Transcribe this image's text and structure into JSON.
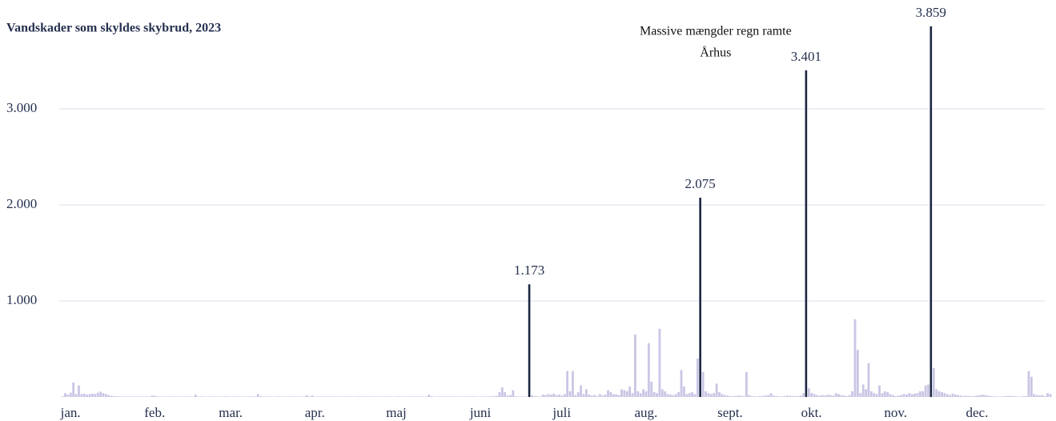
{
  "chart_data": {
    "type": "bar",
    "title": "Vandskader som skyldes skybrud, 2023",
    "months": [
      "jan.",
      "feb.",
      "mar.",
      "apr.",
      "maj",
      "juni",
      "juli",
      "aug.",
      "sept.",
      "okt.",
      "nov.",
      "dec."
    ],
    "values": [
      8,
      40,
      25,
      45,
      150,
      30,
      120,
      30,
      35,
      25,
      30,
      35,
      30,
      45,
      55,
      40,
      30,
      20,
      12,
      10,
      8,
      6,
      5,
      6,
      5,
      6,
      5,
      4,
      5,
      6,
      5,
      6,
      5,
      15,
      12,
      6,
      5,
      5,
      4,
      5,
      6,
      5,
      5,
      4,
      5,
      6,
      5,
      5,
      4,
      25,
      5,
      6,
      5,
      4,
      5,
      6,
      5,
      5,
      4,
      5,
      6,
      5,
      4,
      5,
      6,
      5,
      5,
      4,
      5,
      6,
      5,
      6,
      30,
      8,
      5,
      6,
      5,
      5,
      4,
      5,
      6,
      5,
      4,
      5,
      6,
      5,
      5,
      4,
      5,
      6,
      20,
      6,
      15,
      4,
      5,
      6,
      5,
      5,
      4,
      5,
      6,
      5,
      4,
      5,
      6,
      5,
      5,
      4,
      5,
      6,
      5,
      6,
      5,
      4,
      5,
      6,
      5,
      5,
      4,
      5,
      6,
      5,
      4,
      5,
      6,
      5,
      5,
      4,
      5,
      6,
      5,
      6,
      5,
      4,
      5,
      25,
      8,
      5,
      4,
      5,
      6,
      5,
      4,
      5,
      6,
      5,
      5,
      4,
      5,
      6,
      5,
      6,
      5,
      4,
      5,
      6,
      5,
      5,
      8,
      10,
      12,
      50,
      100,
      50,
      15,
      20,
      70,
      8,
      6,
      5,
      5,
      6,
      1173,
      20,
      10,
      8,
      6,
      25,
      20,
      30,
      25,
      35,
      20,
      25,
      15,
      30,
      270,
      60,
      270,
      20,
      50,
      120,
      30,
      80,
      25,
      15,
      20,
      10,
      30,
      15,
      25,
      70,
      50,
      30,
      25,
      20,
      80,
      70,
      60,
      110,
      40,
      650,
      60,
      40,
      80,
      60,
      560,
      160,
      50,
      40,
      710,
      80,
      60,
      30,
      25,
      20,
      30,
      50,
      280,
      110,
      30,
      40,
      50,
      30,
      400,
      2075,
      260,
      60,
      40,
      30,
      40,
      140,
      50,
      30,
      20,
      15,
      10,
      8,
      10,
      15,
      12,
      10,
      260,
      20,
      10,
      8,
      6,
      10,
      12,
      15,
      20,
      40,
      15,
      10,
      8,
      6,
      10,
      15,
      12,
      10,
      8,
      10,
      15,
      40,
      3401,
      90,
      40,
      30,
      20,
      15,
      20,
      15,
      25,
      20,
      15,
      40,
      30,
      20,
      15,
      10,
      20,
      60,
      810,
      490,
      40,
      130,
      80,
      350,
      60,
      40,
      30,
      120,
      40,
      60,
      50,
      30,
      20,
      10,
      15,
      20,
      30,
      25,
      40,
      30,
      35,
      40,
      60,
      60,
      120,
      130,
      3859,
      300,
      80,
      60,
      50,
      40,
      30,
      20,
      35,
      25,
      20,
      15,
      10,
      15,
      10,
      8,
      10,
      15,
      20,
      25,
      20,
      15,
      10,
      8,
      6,
      5,
      6,
      8,
      10,
      12,
      10,
      8,
      6,
      5,
      8,
      10,
      270,
      210,
      30,
      20,
      15,
      20,
      10,
      40,
      30
    ],
    "value_labels": {
      "172": "1.173",
      "235": "2.075",
      "274": "3.401",
      "320": "3.859"
    },
    "annotation": {
      "lines": [
        "Massive mængder regn ramte",
        "Århus"
      ],
      "at": 274
    },
    "color": "#c9c6e5",
    "highlight_color": "#1c2642",
    "grid_color": "#dcdbee",
    "ylim": [
      0,
      4000
    ],
    "yticks": [
      {
        "value": 1000,
        "label": "1.000"
      },
      {
        "value": 2000,
        "label": "2.000"
      },
      {
        "value": 3000,
        "label": "3.000"
      }
    ],
    "grid": true
  }
}
